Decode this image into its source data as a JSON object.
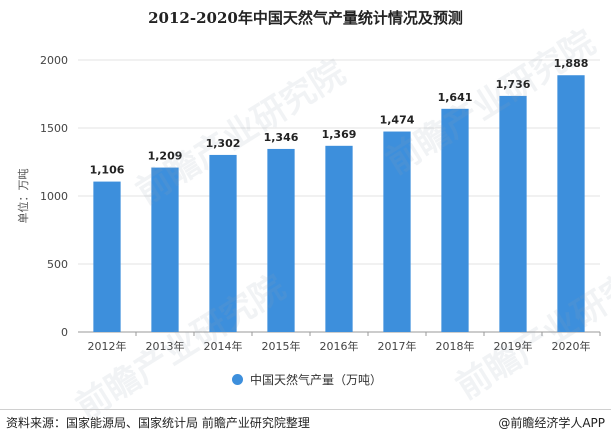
{
  "title": "2012-2020年中国天然气产量统计情况及预测",
  "colors": {
    "bar": "#3d8fdc",
    "grid": "#e3e3e3",
    "axis": "#999999"
  },
  "chart_data": {
    "type": "bar",
    "title": "2012-2020年中国天然气产量统计情况及预测",
    "categories": [
      "2012年",
      "2013年",
      "2014年",
      "2015年",
      "2016年",
      "2017年",
      "2018年",
      "2019年",
      "2020年"
    ],
    "series": [
      {
        "name": "中国天然气产量（万吨）",
        "values": [
          1106,
          1209,
          1302,
          1346,
          1369,
          1474,
          1641,
          1736,
          1888
        ]
      }
    ],
    "data_labels": [
      "1,106",
      "1,209",
      "1,302",
      "1,346",
      "1,369",
      "1,474",
      "1,641",
      "1,736",
      "1,888"
    ],
    "ylabel": "单位：万吨",
    "xlabel": "",
    "ylim": [
      0,
      2000
    ],
    "yticks": [
      0,
      500,
      1000,
      1500,
      2000
    ],
    "ytick_labels": [
      "0",
      "500",
      "1000",
      "1500",
      "2000"
    ],
    "grid": true,
    "legend_position": "bottom"
  },
  "legend": {
    "label": "中国天然气产量（万吨）",
    "icon": "circle-dot-icon"
  },
  "watermark": "前瞻产业研究院",
  "footer": {
    "source": "资料来源：国家能源局、国家统计局 前瞻产业研究院整理",
    "brand": "@前瞻经济学人APP"
  }
}
